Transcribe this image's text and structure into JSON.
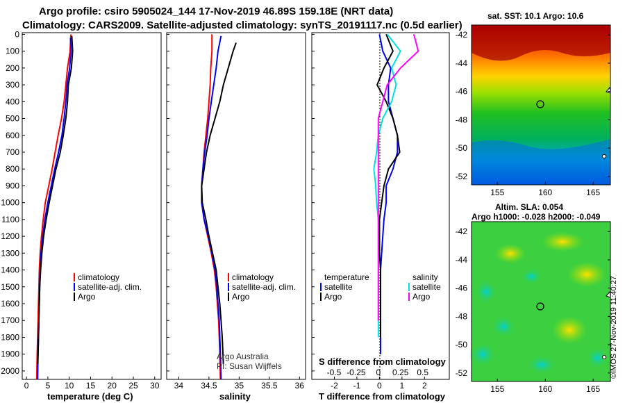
{
  "title_line1": "Argo profile: csiro 5905024_144 17-Nov-2019 46.89S 159.18E (NRT data)",
  "title_line2": "Climatology: CARS2009. Satellite-adjusted climatology: synTS_20191117.nc (0.5d earlier)",
  "colors": {
    "climatology": "#ff0000",
    "satellite": "#0000ff",
    "argo": "#000000",
    "satellite_salinity": "#00e0e0",
    "argo_salinity": "#ff00ff"
  },
  "depth_ticks": [
    "0",
    "100",
    "200",
    "300",
    "400",
    "500",
    "600",
    "700",
    "800",
    "900",
    "1000",
    "1100",
    "1200",
    "1300",
    "1400",
    "1500",
    "1600",
    "1700",
    "1800",
    "1900",
    "2000"
  ],
  "panels": {
    "temperature": {
      "xlabel": "temperature (deg C)",
      "ticks": [
        "0",
        "5",
        "10",
        "15",
        "20",
        "25",
        "30"
      ]
    },
    "salinity": {
      "xlabel": "salinity",
      "ticks": [
        "34",
        "34.5",
        "35",
        "35.5",
        "36"
      ]
    },
    "difference": {
      "xlabel": "T difference from climatology",
      "ticks": [
        "-2",
        "-1",
        "0",
        "1",
        "2"
      ],
      "s_label": "S difference from climatology",
      "s_ticks": [
        "-0.5",
        "-0.25",
        "0",
        "0.25",
        "0.5"
      ]
    }
  },
  "legend": {
    "climatology": "climatology",
    "satellite_adj": "satellite-adj. clim.",
    "argo": "Argo",
    "temperature": "temperature",
    "salinity": "salinity",
    "satellite": "satellite"
  },
  "credit": {
    "line1": "Argo Australia",
    "line2": "PI: Susan Wijffels"
  },
  "map_top": {
    "title": "sat. SST: 10.1 Argo: 10.6",
    "y_ticks": [
      "-42",
      "-44",
      "-46",
      "-48",
      "-50",
      "-52"
    ],
    "x_ticks": [
      "155",
      "160",
      "165"
    ]
  },
  "map_bottom": {
    "title_line1": "Altim. SLA: 0.054",
    "title_line2": "Argo h1000: -0.028 h2000: -0.049",
    "y_ticks": [
      "-42",
      "-44",
      "-46",
      "-48",
      "-50",
      "-52"
    ],
    "x_ticks": [
      "155",
      "160",
      "165"
    ]
  },
  "stamp": "©IMOS 27-Nov-2019 11:40:27",
  "chart_data": [
    {
      "type": "line",
      "panel": "temperature",
      "xlabel": "temperature (deg C)",
      "xlim": [
        -1,
        31.5
      ],
      "ylim": [
        2050,
        -10
      ],
      "series": [
        {
          "name": "climatology",
          "x": [
            10.4,
            10.2,
            9.6,
            9.2,
            8.8,
            8.2,
            7.4,
            6.7,
            6.0,
            5.2,
            4.4,
            3.9,
            3.5,
            3.2,
            3.0,
            2.9,
            2.8,
            2.7,
            2.6,
            2.5,
            2.4
          ],
          "y": [
            0,
            100,
            200,
            300,
            400,
            500,
            600,
            700,
            800,
            900,
            1000,
            1100,
            1200,
            1300,
            1400,
            1500,
            1600,
            1700,
            1800,
            1900,
            2050
          ]
        },
        {
          "name": "satellite-adj. clim.",
          "x": [
            10.3,
            10.4,
            10.1,
            9.5,
            9.2,
            8.8,
            8.3,
            7.5,
            6.6,
            5.8,
            5.0,
            4.3,
            3.8,
            3.4,
            3.2,
            3.1,
            3.0,
            2.9,
            2.8,
            2.7,
            2.6
          ],
          "y": [
            20,
            100,
            200,
            300,
            400,
            500,
            600,
            700,
            800,
            900,
            1000,
            1100,
            1200,
            1300,
            1400,
            1500,
            1600,
            1700,
            1800,
            1900,
            2050
          ]
        },
        {
          "name": "Argo",
          "x": [
            10.6,
            10.8,
            10.5,
            9.8,
            9.6,
            9.2,
            8.6,
            7.9,
            6.9,
            6.1,
            5.3,
            4.6,
            4.0,
            3.6,
            3.3,
            3.1,
            3.0,
            2.9,
            2.8,
            2.7,
            2.6
          ],
          "y": [
            10,
            100,
            200,
            300,
            400,
            500,
            600,
            700,
            800,
            900,
            1000,
            1100,
            1200,
            1300,
            1400,
            1500,
            1600,
            1700,
            1800,
            1900,
            1960
          ]
        }
      ]
    },
    {
      "type": "line",
      "panel": "salinity",
      "xlabel": "salinity",
      "xlim": [
        33.8,
        36.1
      ],
      "ylim": [
        2050,
        -10
      ],
      "series": [
        {
          "name": "climatology",
          "x": [
            34.55,
            34.55,
            34.53,
            34.52,
            34.5,
            34.48,
            34.45,
            34.42,
            34.4,
            34.38,
            34.38,
            34.42,
            34.48,
            34.54,
            34.59,
            34.62,
            34.64,
            34.66,
            34.67,
            34.68,
            34.69
          ],
          "y": [
            0,
            100,
            200,
            300,
            400,
            500,
            600,
            700,
            800,
            900,
            1000,
            1100,
            1200,
            1300,
            1400,
            1500,
            1600,
            1700,
            1800,
            1900,
            2050
          ]
        },
        {
          "name": "satellite-adj. clim.",
          "x": [
            34.7,
            34.65,
            34.62,
            34.58,
            34.54,
            34.5,
            34.47,
            34.43,
            34.4,
            34.38,
            34.38,
            34.42,
            34.49,
            34.55,
            34.6,
            34.63,
            34.65,
            34.67,
            34.68,
            34.69,
            34.7
          ],
          "y": [
            10,
            100,
            200,
            300,
            400,
            500,
            600,
            700,
            800,
            900,
            1000,
            1100,
            1200,
            1300,
            1400,
            1500,
            1600,
            1700,
            1800,
            1900,
            2050
          ]
        },
        {
          "name": "Argo",
          "x": [
            34.95,
            34.9,
            34.82,
            34.74,
            34.68,
            34.6,
            34.52,
            34.46,
            34.42,
            34.38,
            34.39,
            34.45,
            34.5,
            34.56,
            34.62,
            34.65,
            34.68,
            34.7,
            34.72,
            34.74
          ],
          "y": [
            50,
            100,
            200,
            300,
            400,
            500,
            600,
            700,
            800,
            900,
            1000,
            1100,
            1200,
            1300,
            1400,
            1500,
            1600,
            1700,
            1800,
            1960
          ]
        }
      ]
    },
    {
      "type": "line",
      "panel": "difference",
      "xlabel": "T difference from climatology",
      "xlim": [
        -3,
        3.1
      ],
      "ylim": [
        2050,
        -10
      ],
      "series": [
        {
          "name": "temperature satellite",
          "x": [
            0,
            0.15,
            0.5,
            0.4,
            0.4,
            0.6,
            0.8,
            0.8,
            0.6,
            0.3,
            0.3,
            0.2,
            0.15,
            0.1,
            0.05,
            0.05,
            0.05,
            0.05,
            0.05,
            0.05
          ],
          "y": [
            0,
            100,
            200,
            300,
            400,
            500,
            600,
            700,
            800,
            900,
            1000,
            1100,
            1200,
            1300,
            1400,
            1500,
            1600,
            1700,
            1800,
            1900
          ]
        },
        {
          "name": "temperature Argo",
          "x": [
            0.3,
            0.6,
            0.2,
            -0.1,
            0.3,
            0.6,
            0.8,
            0.9,
            0.4,
            0.2,
            0.1,
            0.0,
            0.0,
            0.0,
            0.05,
            0.05,
            0.05,
            0.05,
            0.05
          ],
          "y": [
            0,
            100,
            200,
            300,
            400,
            500,
            600,
            700,
            800,
            900,
            1000,
            1100,
            1200,
            1300,
            1400,
            1500,
            1600,
            1700,
            1800
          ]
        },
        {
          "name": "salinity satellite",
          "x": [
            0.1,
            0.25,
            0.15,
            0.2,
            0.15,
            0.05,
            0.0,
            -0.02,
            -0.05,
            -0.03,
            -0.02,
            0.0,
            0.0,
            0.0,
            0.0,
            0.0,
            0.0,
            0.0,
            0.0
          ],
          "y": [
            0,
            100,
            200,
            300,
            400,
            500,
            600,
            700,
            800,
            900,
            1000,
            1100,
            1200,
            1300,
            1400,
            1500,
            1600,
            1700,
            1800
          ]
        },
        {
          "name": "salinity Argo",
          "x": [
            0.4,
            0.45,
            0.25,
            0.1,
            0.05,
            0.0,
            0.0,
            0.0,
            0.0,
            0.0,
            0.0,
            0.0,
            0.0,
            0.0,
            0.0,
            0.0,
            0.0,
            0.0
          ],
          "y": [
            0,
            100,
            200,
            300,
            400,
            500,
            600,
            700,
            800,
            900,
            1000,
            1100,
            1200,
            1300,
            1400,
            1500,
            1600,
            1700
          ]
        }
      ]
    }
  ]
}
